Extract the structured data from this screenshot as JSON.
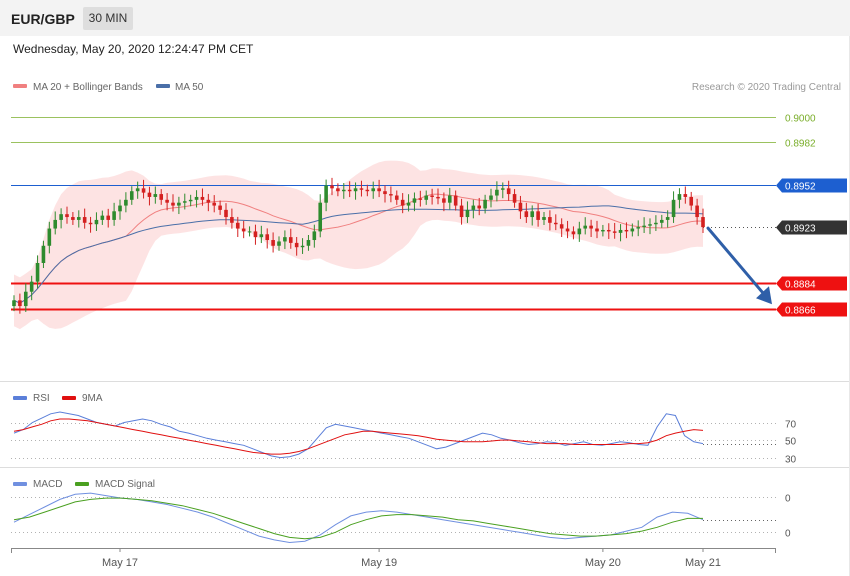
{
  "header": {
    "symbol": "EUR/GBP",
    "timeframe": "30 MIN",
    "timestamp": "Wednesday, May 20, 2020 12:24:47 PM CET"
  },
  "colors": {
    "candle_up": "#2e8b2e",
    "candle_down": "#d42020",
    "ma20": "#f08080",
    "bollinger_fill": "#fde0e0",
    "ma50": "#4a6fa8",
    "target_green": "#7aae2a",
    "resistance_blue": "#1d5fd0",
    "support_red": "#ee1111",
    "current_price_bg": "#333333",
    "rsi": "#5b7fd9",
    "rsi_ma": "#e01010",
    "macd": "#7090e0",
    "macd_signal": "#4aa020",
    "arrow": "#2f5fa8"
  },
  "chart_data": [
    {
      "type": "candlestick",
      "panel": "price",
      "legend": [
        {
          "label": "MA 20 + Bollinger Bands",
          "color": "#f08080"
        },
        {
          "label": "MA 50",
          "color": "#4a6fa8"
        }
      ],
      "credit": "Research © 2020 Trading Central",
      "ylim": [
        0.882,
        0.9015
      ],
      "levels": [
        {
          "value": 0.9,
          "label": "0.9000",
          "role": "target"
        },
        {
          "value": 0.8982,
          "label": "0.8982",
          "role": "target"
        },
        {
          "value": 0.8952,
          "label": "0.8952",
          "role": "resistance"
        },
        {
          "value": 0.8923,
          "label": "0.8923",
          "role": "current"
        },
        {
          "value": 0.8884,
          "label": "0.8884",
          "role": "support"
        },
        {
          "value": 0.8866,
          "label": "0.8866",
          "role": "support"
        }
      ],
      "forecast_arrow": {
        "from": 0.8923,
        "to": 0.887,
        "direction": "down"
      },
      "xlabels": [
        {
          "label": "May 17",
          "index": 18
        },
        {
          "label": "May 19",
          "index": 62
        },
        {
          "label": "May 20",
          "index": 100
        },
        {
          "label": "May 21",
          "index": 118
        }
      ],
      "n_candles": 118,
      "close": [
        0.8872,
        0.8868,
        0.8878,
        0.8885,
        0.8898,
        0.891,
        0.8922,
        0.8928,
        0.8932,
        0.893,
        0.8928,
        0.893,
        0.8926,
        0.8925,
        0.8928,
        0.8931,
        0.8928,
        0.8934,
        0.8938,
        0.8942,
        0.8948,
        0.895,
        0.8947,
        0.8944,
        0.8946,
        0.8942,
        0.894,
        0.8938,
        0.894,
        0.8941,
        0.8942,
        0.8944,
        0.8942,
        0.894,
        0.8938,
        0.8935,
        0.893,
        0.8926,
        0.8922,
        0.892,
        0.892,
        0.8916,
        0.8918,
        0.8914,
        0.891,
        0.8913,
        0.8916,
        0.8912,
        0.8909,
        0.891,
        0.8914,
        0.892,
        0.894,
        0.8952,
        0.895,
        0.8948,
        0.8949,
        0.8948,
        0.895,
        0.8949,
        0.8948,
        0.895,
        0.8948,
        0.8946,
        0.8945,
        0.8942,
        0.8938,
        0.894,
        0.8943,
        0.8942,
        0.8945,
        0.8944,
        0.8943,
        0.894,
        0.8945,
        0.8938,
        0.893,
        0.8935,
        0.8938,
        0.8936,
        0.8942,
        0.8945,
        0.8949,
        0.895,
        0.8946,
        0.894,
        0.8934,
        0.893,
        0.8934,
        0.8928,
        0.893,
        0.8926,
        0.8925,
        0.8922,
        0.892,
        0.8918,
        0.8922,
        0.8924,
        0.8922,
        0.892,
        0.8921,
        0.892,
        0.8919,
        0.8921,
        0.892,
        0.8922,
        0.8923,
        0.8924,
        0.8925,
        0.8926,
        0.8928,
        0.893,
        0.8942,
        0.8946,
        0.8944,
        0.8938,
        0.893,
        0.8923
      ]
    },
    {
      "type": "line",
      "panel": "rsi",
      "legend": [
        {
          "label": "RSI",
          "color": "#5b7fd9"
        },
        {
          "label": "9MA",
          "color": "#e01010"
        }
      ],
      "ylim": [
        25,
        90
      ],
      "ticks": [
        {
          "value": 70,
          "label": "70"
        },
        {
          "value": 50,
          "label": "50"
        },
        {
          "value": 30,
          "label": "30"
        }
      ],
      "series": [
        {
          "name": "RSI",
          "values": [
            58,
            62,
            70,
            75,
            80,
            82,
            80,
            78,
            74,
            70,
            68,
            66,
            70,
            72,
            74,
            72,
            68,
            65,
            60,
            58,
            55,
            52,
            50,
            48,
            46,
            44,
            40,
            36,
            32,
            30,
            31,
            34,
            40,
            52,
            64,
            68,
            66,
            64,
            62,
            60,
            58,
            56,
            54,
            52,
            48,
            44,
            40,
            42,
            46,
            50,
            54,
            58,
            56,
            52,
            50,
            47,
            45,
            46,
            48,
            47,
            44,
            46,
            48,
            45,
            44,
            46,
            48,
            47,
            45,
            44,
            65,
            80,
            78,
            55,
            48,
            46
          ]
        },
        {
          "name": "9MA",
          "values": [
            60,
            62,
            65,
            68,
            72,
            74,
            74,
            73,
            72,
            70,
            68,
            66,
            64,
            62,
            60,
            58,
            56,
            54,
            52,
            50,
            48,
            46,
            44,
            42,
            40,
            38,
            36,
            35,
            34,
            34,
            35,
            37,
            40,
            44,
            48,
            52,
            56,
            58,
            60,
            60,
            59,
            58,
            57,
            56,
            55,
            53,
            51,
            50,
            49,
            48,
            48,
            48,
            49,
            50,
            50,
            49,
            48,
            47,
            46,
            46,
            46,
            45,
            45,
            45,
            45,
            45,
            45,
            46,
            46,
            47,
            50,
            55,
            58,
            60,
            62,
            61
          ]
        }
      ]
    },
    {
      "type": "line",
      "panel": "macd",
      "legend": [
        {
          "label": "MACD",
          "color": "#7090e0"
        },
        {
          "label": "MACD Signal",
          "color": "#4aa020"
        }
      ],
      "ylim": [
        -0.001,
        0.0035
      ],
      "ticks": [
        {
          "value": 0.0028,
          "label": "0"
        },
        {
          "value": 0.0,
          "label": "0"
        }
      ],
      "series": [
        {
          "name": "MACD",
          "values": [
            0.0008,
            0.0014,
            0.002,
            0.0026,
            0.003,
            0.0031,
            0.0029,
            0.0027,
            0.0026,
            0.0024,
            0.0022,
            0.0019,
            0.0016,
            0.0012,
            0.0007,
            0.0002,
            -0.0003,
            -0.0006,
            -0.0008,
            -0.0007,
            -0.0002,
            0.0006,
            0.0013,
            0.0016,
            0.0017,
            0.0016,
            0.0014,
            0.0012,
            0.001,
            0.0008,
            0.0006,
            0.0004,
            0.0002,
            0.0,
            -0.0002,
            -0.0004,
            -0.0005,
            -0.0004,
            -0.0003,
            -0.0002,
            0.0001,
            0.0004,
            0.0012,
            0.0016,
            0.0015,
            0.001
          ]
        },
        {
          "name": "MACD Signal",
          "values": [
            0.001,
            0.0012,
            0.0016,
            0.002,
            0.0024,
            0.0026,
            0.0027,
            0.0027,
            0.0026,
            0.0025,
            0.0023,
            0.0021,
            0.0018,
            0.0015,
            0.0011,
            0.0007,
            0.0003,
            -0.0001,
            -0.0004,
            -0.0005,
            -0.0004,
            0.0,
            0.0006,
            0.001,
            0.0013,
            0.0014,
            0.0014,
            0.0013,
            0.0012,
            0.001,
            0.0009,
            0.0007,
            0.0005,
            0.0003,
            0.0001,
            -0.0001,
            -0.0002,
            -0.0003,
            -0.0003,
            -0.0002,
            -0.0001,
            0.0001,
            0.0004,
            0.0008,
            0.0011,
            0.0011
          ]
        }
      ]
    }
  ]
}
